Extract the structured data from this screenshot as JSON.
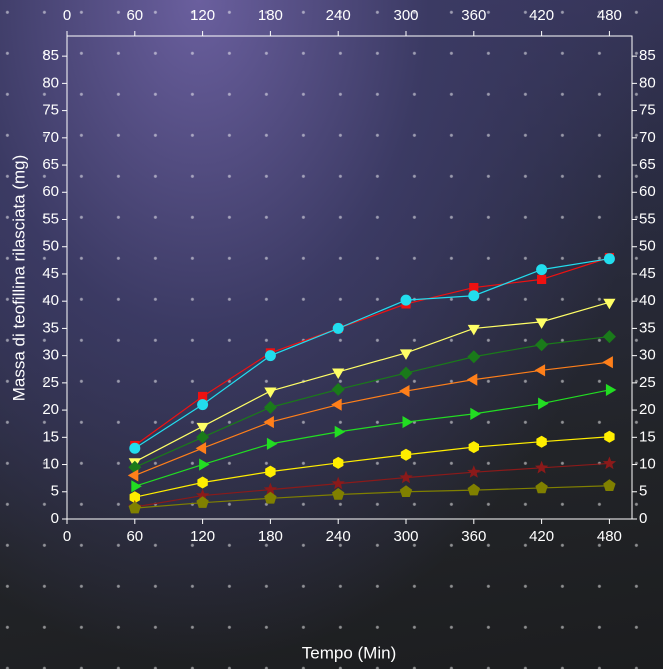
{
  "chart_data": {
    "type": "line",
    "x_label": "Tempo (Min)",
    "y_label": "Massa di teofillina rilasciata (mg)",
    "x": [
      60,
      120,
      180,
      240,
      300,
      360,
      420,
      480
    ],
    "xlim": [
      0,
      500
    ],
    "xticks": [
      0,
      60,
      120,
      180,
      240,
      300,
      360,
      420,
      480
    ],
    "ylim": [
      0,
      88.7
    ],
    "yticks": [
      0,
      5,
      10,
      15,
      20,
      25,
      30,
      35,
      40,
      45,
      50,
      55,
      60,
      65,
      70,
      75,
      80,
      85
    ],
    "series": [
      {
        "color": "#ee1111",
        "marker": "square",
        "values": [
          13.5,
          22.5,
          30.5,
          35,
          39.5,
          42.5,
          44,
          48
        ]
      },
      {
        "color": "#22ddee",
        "marker": "circle",
        "values": [
          13,
          21,
          30,
          35,
          40.2,
          41,
          45.8,
          47.8
        ]
      },
      {
        "color": "#ffff66",
        "marker": "triangle-down",
        "values": [
          10.5,
          17,
          23.5,
          27,
          30.5,
          35,
          36.2,
          39.8
        ]
      },
      {
        "color": "#1a7a1a",
        "marker": "diamond",
        "values": [
          9.5,
          15,
          20.5,
          23.8,
          26.8,
          29.8,
          32,
          33.5
        ]
      },
      {
        "color": "#ff7f1a",
        "marker": "triangle-left",
        "values": [
          8,
          13,
          17.8,
          21,
          23.5,
          25.6,
          27.3,
          28.8
        ]
      },
      {
        "color": "#22dd22",
        "marker": "triangle-right",
        "values": [
          6,
          10,
          13.8,
          16,
          17.8,
          19.3,
          21.2,
          23.7
        ]
      },
      {
        "color": "#ffee00",
        "marker": "hexagon",
        "values": [
          4,
          6.7,
          8.7,
          10.3,
          11.8,
          13.2,
          14.2,
          15.1
        ]
      },
      {
        "color": "#8b1a1a",
        "marker": "star",
        "values": [
          2.2,
          4.3,
          5.4,
          6.5,
          7.6,
          8.6,
          9.4,
          10.2
        ]
      },
      {
        "color": "#808000",
        "marker": "pentagon",
        "values": [
          2,
          3,
          3.8,
          4.5,
          5,
          5.3,
          5.7,
          6.1
        ]
      }
    ]
  }
}
